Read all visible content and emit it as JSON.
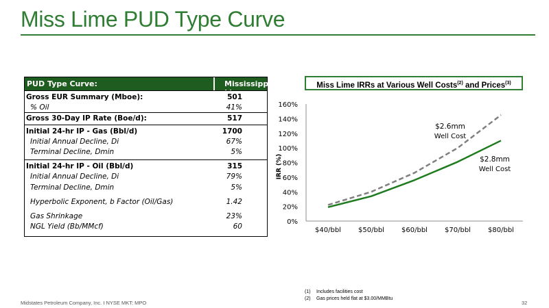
{
  "title": "Miss Lime PUD Type Curve",
  "table": {
    "header_left": "PUD Type Curve:",
    "header_right": "Mississippian Lime",
    "rows": [
      {
        "label": "Gross EUR Summary (Mboe):",
        "value": "501"
      },
      {
        "label": "% Oil",
        "value": "41%"
      },
      {
        "label": "Gross 30-Day IP Rate (Boe/d):",
        "value": "517"
      },
      {
        "label": "Initial 24-hr IP - Gas (Bbl/d)",
        "value": "1700"
      },
      {
        "label": "Initial Annual Decline, Di",
        "value": "67%"
      },
      {
        "label": "Terminal Decline, Dmin",
        "value": "5%"
      },
      {
        "label": "Initial 24-hr IP - Oil (Bbl/d)",
        "value": "315"
      },
      {
        "label": "Initial Annual Decline, Di",
        "value": "79%"
      },
      {
        "label": "Terminal Decline, Dmin",
        "value": "5%"
      },
      {
        "label": "Hyperbolic Exponent, b Factor (Oil/Gas)",
        "value": "1.42"
      },
      {
        "label": "Gas Shrinkage",
        "value": "23%"
      },
      {
        "label": "NGL Yield (Bb/MMcf)",
        "value": "60"
      }
    ]
  },
  "chart_title": {
    "main": "Miss Lime IRRs at Various Well Costs",
    "sup1": "(2)",
    "mid": " and Prices",
    "sup2": "(3)"
  },
  "chart_data": {
    "type": "line",
    "categories": [
      "$40/bbl",
      "$50/bbl",
      "$60/bbl",
      "$70/bbl",
      "$80/bbl"
    ],
    "ylabel": "IRR (%)",
    "ylim": [
      0,
      160
    ],
    "yticks": [
      "0%",
      "20%",
      "40%",
      "60%",
      "80%",
      "100%",
      "120%",
      "140%",
      "160%"
    ],
    "grid": false,
    "series": [
      {
        "name": "$2.6mm Well Cost",
        "values": [
          22,
          40,
          66,
          100,
          145
        ],
        "color": "#7f7f7f",
        "dashed": true
      },
      {
        "name": "$2.8mm Well Cost",
        "values": [
          19,
          34,
          56,
          81,
          110
        ],
        "color": "#1e7b1e",
        "dashed": false
      }
    ],
    "annotations": [
      {
        "line1": "$2.6mm",
        "line2": "Well Cost"
      },
      {
        "line1": "$2.8mm",
        "line2": "Well Cost"
      }
    ]
  },
  "footnotes": [
    {
      "num": "(1)",
      "text": "Includes facilities cost"
    },
    {
      "num": "(2)",
      "text": "Gas prices held flat at $3.00/MMBtu"
    }
  ],
  "footer": {
    "left": "Midstates Petroleum Company, Inc. I NYSE MKT: MPO",
    "page": "32"
  }
}
